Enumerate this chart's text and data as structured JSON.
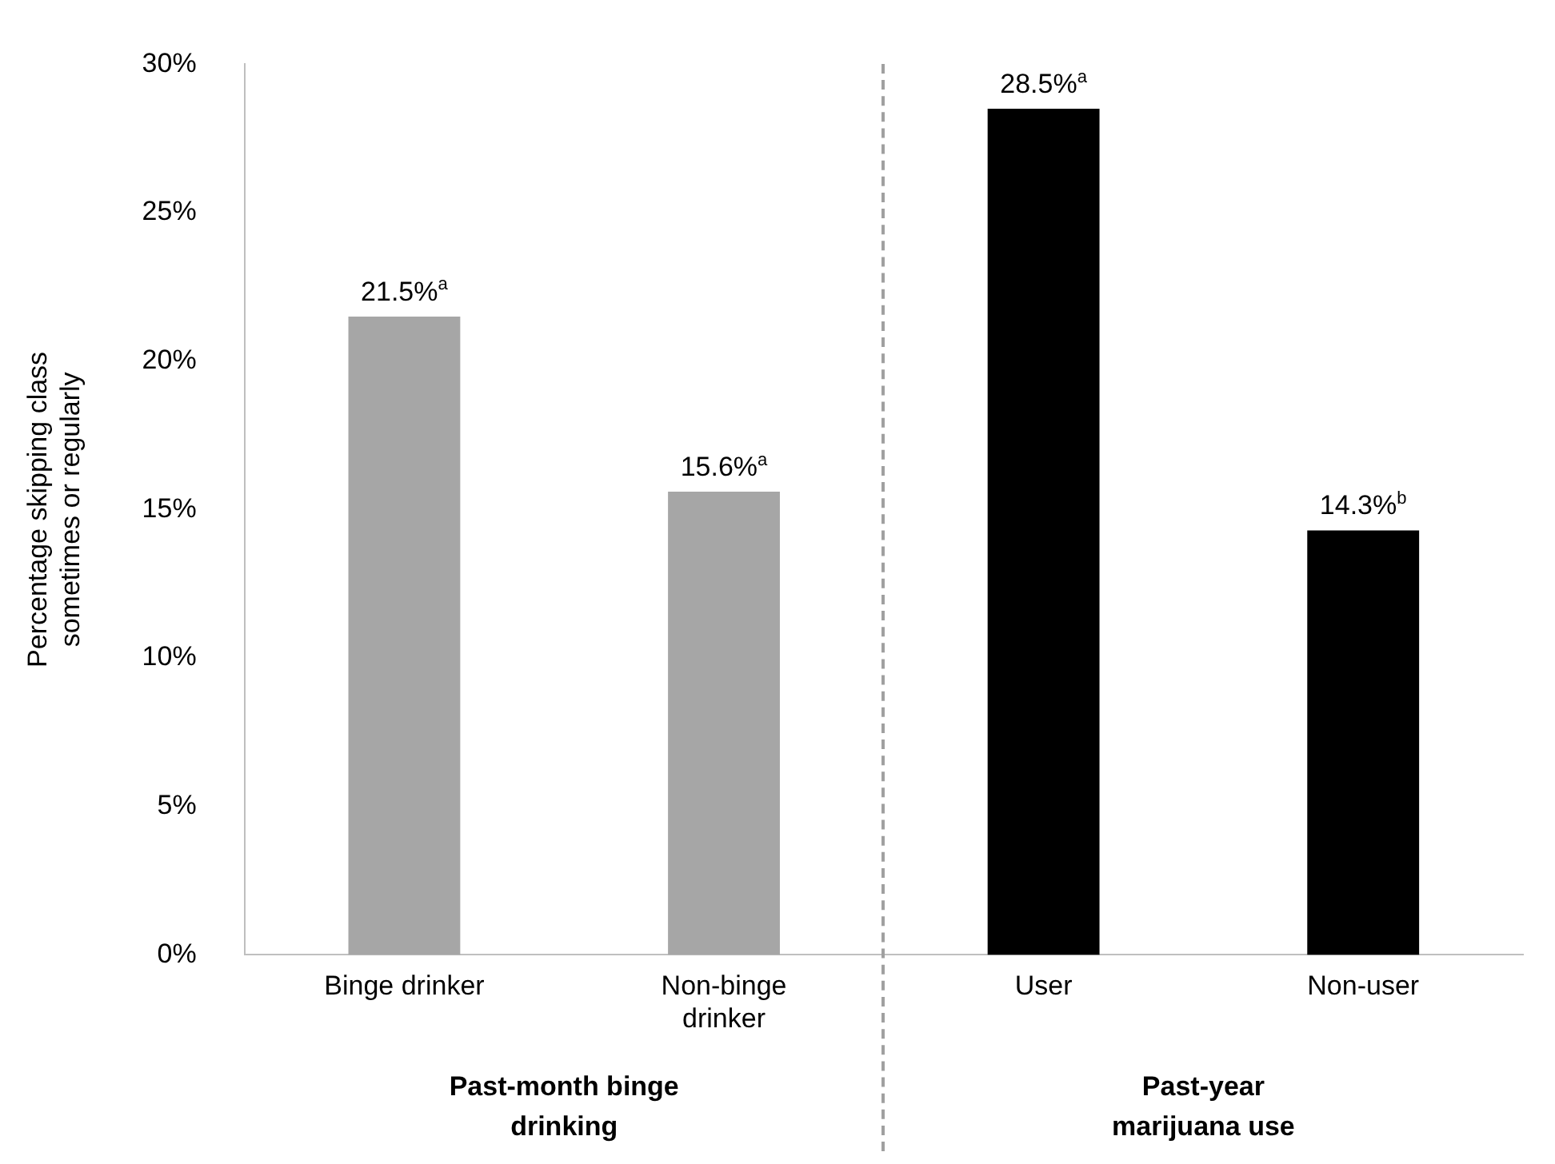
{
  "chart_data": {
    "type": "bar",
    "ylabel": "Percentage skipping class sometimes or regularly",
    "categories": [
      "Binge drinker",
      "Non-binge drinker",
      "User",
      "Non-user"
    ],
    "values": [
      21.5,
      15.6,
      28.5,
      14.3
    ],
    "colors": [
      "#a6a6a6",
      "#a6a6a6",
      "#000000",
      "#000000"
    ],
    "value_labels": [
      "21.5%$^{a}$",
      "15.6%$^{a}$",
      "28.5%$^{a}$",
      "14.3%$^{b}$"
    ],
    "ylim": [
      0,
      30
    ],
    "yticks": [
      {
        "value": 0,
        "label": "0%"
      },
      {
        "value": 5,
        "label": "5%"
      },
      {
        "value": 10,
        "label": "10%"
      },
      {
        "value": 15,
        "label": "15%"
      },
      {
        "value": 20,
        "label": "20%"
      },
      {
        "value": 25,
        "label": "25%"
      },
      {
        "value": 30,
        "label": "30%"
      }
    ],
    "grid": false,
    "legend": false,
    "annotations": [
      "Past-month binge drinking",
      "Past-year marijuana use"
    ]
  }
}
